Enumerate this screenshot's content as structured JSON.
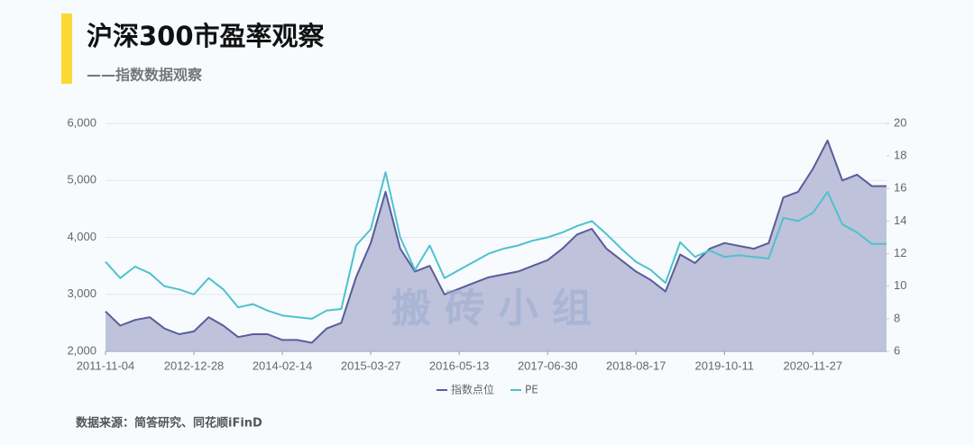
{
  "chart_data": {
    "type": "area-line",
    "title": "沪深300市盈率观察",
    "subtitle": "——指数数据观察",
    "source": "数据来源：简答研究、同花顺iFinD",
    "watermark": "搬 砖 小 组",
    "categories": [
      "2011-11-04",
      null,
      null,
      null,
      null,
      null,
      "2012-12-28",
      null,
      null,
      null,
      null,
      null,
      "2014-02-14",
      null,
      null,
      null,
      null,
      null,
      "2015-03-27",
      null,
      null,
      null,
      null,
      null,
      "2016-05-13",
      null,
      null,
      null,
      null,
      null,
      "2017-06-30",
      null,
      null,
      null,
      null,
      null,
      "2018-08-17",
      null,
      null,
      null,
      null,
      null,
      "2019-10-11",
      null,
      null,
      null,
      null,
      null,
      "2020-11-27",
      null,
      null,
      null,
      null,
      null
    ],
    "series": [
      {
        "name": "指数点位",
        "color": "#5b5c9c",
        "fill": "#b4b7d4",
        "axis": "y",
        "values": [
          2700,
          2450,
          2550,
          2600,
          2400,
          2300,
          2350,
          2600,
          2450,
          2250,
          2300,
          2300,
          2200,
          2200,
          2150,
          2400,
          2500,
          3300,
          3900,
          4800,
          3800,
          3400,
          3500,
          3000,
          3100,
          3200,
          3300,
          3350,
          3400,
          3500,
          3600,
          3800,
          4050,
          4150,
          3800,
          3600,
          3400,
          3250,
          3050,
          3700,
          3550,
          3800,
          3900,
          3850,
          3800,
          3900,
          4700,
          4800,
          5200,
          5700,
          5000,
          5100,
          4900,
          4900
        ]
      },
      {
        "name": "PE",
        "color": "#4fc1cf",
        "axis": "y2",
        "values": [
          11.5,
          10.5,
          11.2,
          10.8,
          10.0,
          9.8,
          9.5,
          10.5,
          9.8,
          8.7,
          8.9,
          8.5,
          8.2,
          8.1,
          8.0,
          8.5,
          8.6,
          12.5,
          13.5,
          17.0,
          13.0,
          11.0,
          12.5,
          10.5,
          11.0,
          11.5,
          12.0,
          12.3,
          12.5,
          12.8,
          13.0,
          13.3,
          13.7,
          14.0,
          13.2,
          12.3,
          11.5,
          11.0,
          10.2,
          12.7,
          11.8,
          12.2,
          11.8,
          11.9,
          11.8,
          11.7,
          14.2,
          14.0,
          14.5,
          15.8,
          13.8,
          13.3,
          12.6,
          12.6
        ]
      }
    ],
    "ylim": [
      2000,
      6000
    ],
    "yticks": [
      {
        "value": 2000,
        "label": "2,000"
      },
      {
        "value": 3000,
        "label": "3,000"
      },
      {
        "value": 4000,
        "label": "4,000"
      },
      {
        "value": 5000,
        "label": "5,000"
      },
      {
        "value": 6000,
        "label": "6,000"
      }
    ],
    "y2lim": [
      6,
      20
    ],
    "y2ticks": [
      6,
      8,
      10,
      12,
      14,
      16,
      18,
      20
    ],
    "grid": true
  }
}
